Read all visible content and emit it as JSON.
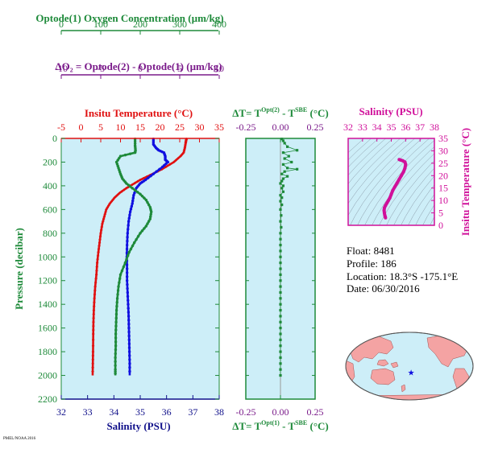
{
  "colors": {
    "green": "#1e8a3a",
    "purple": "#7a1a8a",
    "red": "#e01010",
    "blue": "#1010e0",
    "magenta": "#d0109a",
    "navy": "#10108a",
    "panel_bg": "#cdeef8",
    "land": "#f4a3a3",
    "ocean": "#cdeef8"
  },
  "top_axes": {
    "oxygen_title": "Optode(1) Oxygen Concentration (µm/kg)",
    "oxygen_ticks": [
      "0",
      "100",
      "200",
      "300",
      "400"
    ],
    "delta_o2_title": "ΔO₂ = Optode(2) - Optode(1)   (µm/kg)",
    "delta_o2_ticks": [
      "-10",
      "-5",
      "0",
      "5",
      "10"
    ]
  },
  "info": {
    "float": "Float:  8481",
    "profile": "Profile:  186",
    "location": "Location:  18.3°S  -175.1°E",
    "date": "Date:  06/30/2016"
  },
  "footer_mark": "PMEL/NOAA 2016",
  "chart_data": [
    {
      "id": "main-profile",
      "type": "line",
      "title": "Insitu Temperature (°C)",
      "ylabel": "Pressure (decibar)",
      "xlabel": "Salinity (PSU)",
      "ylim": [
        2200,
        0
      ],
      "y_ticks": [
        0,
        200,
        400,
        600,
        800,
        1000,
        1200,
        1400,
        1600,
        1800,
        2000,
        2200
      ],
      "temperature_axis": {
        "range": [
          -5,
          35
        ],
        "ticks": [
          -5,
          0,
          5,
          10,
          15,
          20,
          25,
          30,
          35
        ]
      },
      "salinity_axis": {
        "range": [
          32,
          38
        ],
        "ticks": [
          32,
          33,
          34,
          35,
          36,
          37,
          38
        ]
      },
      "oxygen_axis": {
        "range": [
          0,
          400
        ]
      },
      "series": [
        {
          "key": "temperature",
          "axis": "temperature",
          "points": [
            [
              26.7,
              5
            ],
            [
              26.6,
              20
            ],
            [
              26.5,
              40
            ],
            [
              26.3,
              80
            ],
            [
              26,
              120
            ],
            [
              25.2,
              150
            ],
            [
              23.5,
              200
            ],
            [
              20.5,
              260
            ],
            [
              17.5,
              310
            ],
            [
              15,
              350
            ],
            [
              13,
              390
            ],
            [
              11.5,
              420
            ],
            [
              9.8,
              460
            ],
            [
              8.5,
              500
            ],
            [
              7.3,
              550
            ],
            [
              6.4,
              600
            ],
            [
              5.9,
              660
            ],
            [
              5.4,
              720
            ],
            [
              5,
              800
            ],
            [
              4.7,
              880
            ],
            [
              4.4,
              960
            ],
            [
              4.1,
              1050
            ],
            [
              3.9,
              1150
            ],
            [
              3.6,
              1250
            ],
            [
              3.4,
              1350
            ],
            [
              3.25,
              1450
            ],
            [
              3.15,
              1550
            ],
            [
              3.1,
              1650
            ],
            [
              3.05,
              1800
            ],
            [
              3,
              1900
            ],
            [
              2.95,
              2000
            ]
          ]
        },
        {
          "key": "salinity",
          "axis": "salinity",
          "points": [
            [
              35.5,
              5
            ],
            [
              35.5,
              50
            ],
            [
              35.6,
              80
            ],
            [
              35.7,
              100
            ],
            [
              35.9,
              120
            ],
            [
              35.95,
              150
            ],
            [
              35.95,
              180
            ],
            [
              36.05,
              200
            ],
            [
              35.85,
              240
            ],
            [
              35.5,
              300
            ],
            [
              35.2,
              350
            ],
            [
              35.0,
              380
            ],
            [
              34.85,
              420
            ],
            [
              34.75,
              480
            ],
            [
              34.7,
              550
            ],
            [
              34.62,
              620
            ],
            [
              34.56,
              700
            ],
            [
              34.52,
              800
            ],
            [
              34.5,
              900
            ],
            [
              34.49,
              1000
            ],
            [
              34.5,
              1100
            ],
            [
              34.5,
              1200
            ],
            [
              34.52,
              1300
            ],
            [
              34.54,
              1400
            ],
            [
              34.56,
              1500
            ],
            [
              34.57,
              1600
            ],
            [
              34.58,
              1700
            ],
            [
              34.59,
              1800
            ],
            [
              34.6,
              1900
            ],
            [
              34.6,
              2000
            ]
          ]
        },
        {
          "key": "oxygen",
          "axis": "oxygen",
          "points": [
            [
              187,
              5
            ],
            [
              187,
              60
            ],
            [
              188,
              100
            ],
            [
              187,
              120
            ],
            [
              150,
              150
            ],
            [
              140,
              200
            ],
            [
              145,
              250
            ],
            [
              150,
              300
            ],
            [
              155,
              340
            ],
            [
              165,
              380
            ],
            [
              180,
              420
            ],
            [
              200,
              470
            ],
            [
              215,
              520
            ],
            [
              225,
              580
            ],
            [
              228,
              620
            ],
            [
              225,
              680
            ],
            [
              215,
              740
            ],
            [
              200,
              800
            ],
            [
              185,
              880
            ],
            [
              172,
              960
            ],
            [
              162,
              1050
            ],
            [
              150,
              1150
            ],
            [
              145,
              1250
            ],
            [
              142,
              1350
            ],
            [
              140,
              1450
            ],
            [
              139,
              1550
            ],
            [
              138,
              1650
            ],
            [
              138,
              1750
            ],
            [
              137,
              1850
            ],
            [
              137,
              1950
            ],
            [
              137,
              2000
            ]
          ]
        }
      ]
    },
    {
      "id": "delta-t",
      "type": "scatter",
      "title_top_prefix": "ΔT= T",
      "title_top_sup": "Opt(2)",
      "title_top_mid": " - T",
      "title_top_sup2": "SBE",
      "title_top_suffix": " (°C)",
      "title_bottom_prefix": "ΔT= T",
      "title_bottom_sup": "Opt(1)",
      "title_bottom_mid": " - T",
      "title_bottom_sup2": "SBE",
      "title_bottom_suffix": " (°C)",
      "xlim": [
        -0.25,
        0.25
      ],
      "ylim": [
        2200,
        0
      ],
      "x_ticks": [
        "-0.25",
        "0.00",
        "0.25"
      ],
      "points": [
        [
          0.01,
          5
        ],
        [
          0.02,
          20
        ],
        [
          0.03,
          40
        ],
        [
          0.05,
          70
        ],
        [
          0.12,
          100
        ],
        [
          0.02,
          120
        ],
        [
          0.06,
          150
        ],
        [
          0.03,
          170
        ],
        [
          0.08,
          200
        ],
        [
          0.02,
          220
        ],
        [
          0.05,
          250
        ],
        [
          0.12,
          260
        ],
        [
          0.03,
          280
        ],
        [
          0.01,
          300
        ],
        [
          0.05,
          320
        ],
        [
          0.02,
          340
        ],
        [
          0.01,
          360
        ],
        [
          0.0,
          380
        ],
        [
          0.02,
          400
        ],
        [
          0.01,
          420
        ],
        [
          0.02,
          450
        ],
        [
          0.0,
          480
        ],
        [
          0.01,
          500
        ],
        [
          0.0,
          530
        ],
        [
          0.01,
          560
        ],
        [
          0.0,
          600
        ],
        [
          0.005,
          650
        ],
        [
          0.0,
          700
        ],
        [
          0.005,
          750
        ],
        [
          0.0,
          800
        ],
        [
          0.0,
          850
        ],
        [
          0.0,
          900
        ],
        [
          0.0,
          950
        ],
        [
          0.0,
          1000
        ],
        [
          0.0,
          1050
        ],
        [
          0.0,
          1100
        ],
        [
          0.0,
          1150
        ],
        [
          0.0,
          1200
        ],
        [
          0.0,
          1250
        ],
        [
          0.0,
          1300
        ],
        [
          0.0,
          1350
        ],
        [
          0.0,
          1400
        ],
        [
          0.0,
          1450
        ],
        [
          0.0,
          1500
        ],
        [
          0.0,
          1550
        ],
        [
          0.0,
          1600
        ],
        [
          0.0,
          1650
        ],
        [
          0.0,
          1700
        ],
        [
          0.0,
          1750
        ],
        [
          0.0,
          1800
        ],
        [
          0.0,
          1850
        ],
        [
          0.0,
          1900
        ],
        [
          0.0,
          1950
        ],
        [
          0.0,
          2000
        ]
      ]
    },
    {
      "id": "ts-diagram",
      "type": "scatter",
      "title": "Salinity (PSU)",
      "ylabel": "Insitu Temperature (°C)",
      "xlim": [
        32,
        38
      ],
      "ylim": [
        0,
        35
      ],
      "x_ticks": [
        "32",
        "33",
        "34",
        "35",
        "36",
        "37",
        "38"
      ],
      "y_ticks": [
        "0",
        "5",
        "10",
        "15",
        "20",
        "25",
        "30",
        "35"
      ],
      "points": [
        [
          34.6,
          3
        ],
        [
          34.58,
          3.5
        ],
        [
          34.55,
          4
        ],
        [
          34.52,
          5
        ],
        [
          34.5,
          6
        ],
        [
          34.52,
          7
        ],
        [
          34.6,
          8
        ],
        [
          34.7,
          9
        ],
        [
          34.8,
          10
        ],
        [
          34.9,
          11
        ],
        [
          35.0,
          12.5
        ],
        [
          35.1,
          14
        ],
        [
          35.25,
          15.5
        ],
        [
          35.4,
          17
        ],
        [
          35.55,
          18.5
        ],
        [
          35.7,
          20
        ],
        [
          35.85,
          21.5
        ],
        [
          35.95,
          23
        ],
        [
          36.0,
          24.5
        ],
        [
          35.95,
          25.5
        ],
        [
          35.8,
          26
        ],
        [
          35.65,
          26.3
        ],
        [
          35.55,
          26.5
        ]
      ]
    }
  ],
  "map": {
    "marker_lon": -175.1,
    "marker_lat": -18.3
  }
}
